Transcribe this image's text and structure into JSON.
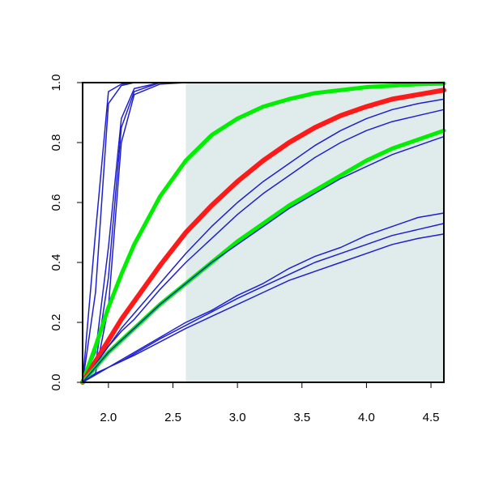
{
  "chart_data": {
    "type": "line",
    "title": "",
    "xlabel": "",
    "ylabel": "",
    "xlim": [
      1.8,
      4.6
    ],
    "ylim": [
      0.0,
      1.0
    ],
    "x_ticks": [
      "2.0",
      "2.5",
      "3.0",
      "3.5",
      "4.0",
      "4.5"
    ],
    "x_tick_values": [
      2.0,
      2.5,
      3.0,
      3.5,
      4.0,
      4.5
    ],
    "y_ticks": [
      "0.0",
      "0.2",
      "0.4",
      "0.6",
      "0.8",
      "1.0"
    ],
    "y_tick_values": [
      0.0,
      0.2,
      0.4,
      0.6,
      0.8,
      1.0
    ],
    "grid": false,
    "shaded_region": {
      "x_range": [
        2.6,
        4.6
      ],
      "color": "#e0ecec"
    },
    "x": [
      1.8,
      1.9,
      2.0,
      2.1,
      2.2,
      2.4,
      2.6,
      2.8,
      3.0,
      3.2,
      3.4,
      3.6,
      3.8,
      4.0,
      4.2,
      4.4,
      4.6
    ],
    "series": [
      {
        "color": "#1f1fcf",
        "width": 1.5,
        "values": [
          0.0,
          0.5,
          0.97,
          0.995,
          1.0,
          1.0,
          1.0,
          1.0,
          1.0,
          1.0,
          1.0,
          1.0,
          1.0,
          1.0,
          1.0,
          1.0,
          1.0
        ]
      },
      {
        "color": "#1f1fcf",
        "width": 1.5,
        "values": [
          0.0,
          0.3,
          0.93,
          0.99,
          1.0,
          1.0,
          1.0,
          1.0,
          1.0,
          1.0,
          1.0,
          1.0,
          1.0,
          1.0,
          1.0,
          1.0,
          1.0
        ]
      },
      {
        "color": "#1f1fcf",
        "width": 1.5,
        "values": [
          0.0,
          0.1,
          0.45,
          0.88,
          0.98,
          1.0,
          1.0,
          1.0,
          1.0,
          1.0,
          1.0,
          1.0,
          1.0,
          1.0,
          1.0,
          1.0,
          1.0
        ]
      },
      {
        "color": "#1f1fcf",
        "width": 1.5,
        "values": [
          0.0,
          0.06,
          0.35,
          0.85,
          0.97,
          1.0,
          1.0,
          1.0,
          1.0,
          1.0,
          1.0,
          1.0,
          1.0,
          1.0,
          1.0,
          1.0,
          1.0
        ]
      },
      {
        "color": "#1f1fcf",
        "width": 1.5,
        "values": [
          0.0,
          0.03,
          0.25,
          0.8,
          0.96,
          0.995,
          1.0,
          1.0,
          1.0,
          1.0,
          1.0,
          1.0,
          1.0,
          1.0,
          1.0,
          1.0,
          1.0
        ]
      },
      {
        "color": "#00ee00",
        "width": 5,
        "values": [
          0.0,
          0.12,
          0.25,
          0.36,
          0.46,
          0.62,
          0.74,
          0.825,
          0.88,
          0.92,
          0.945,
          0.965,
          0.975,
          0.985,
          0.99,
          0.995,
          0.997
        ]
      },
      {
        "color": "#ff1a1a",
        "width": 6,
        "values": [
          0.0,
          0.07,
          0.14,
          0.21,
          0.27,
          0.39,
          0.5,
          0.59,
          0.67,
          0.74,
          0.8,
          0.85,
          0.89,
          0.92,
          0.945,
          0.96,
          0.975
        ]
      },
      {
        "color": "#1f1fcf",
        "width": 1.5,
        "values": [
          0.0,
          0.06,
          0.12,
          0.18,
          0.23,
          0.33,
          0.43,
          0.52,
          0.6,
          0.67,
          0.73,
          0.79,
          0.84,
          0.88,
          0.91,
          0.93,
          0.945
        ]
      },
      {
        "color": "#1f1fcf",
        "width": 1.5,
        "values": [
          0.0,
          0.06,
          0.12,
          0.17,
          0.21,
          0.31,
          0.4,
          0.48,
          0.56,
          0.63,
          0.69,
          0.75,
          0.8,
          0.84,
          0.87,
          0.89,
          0.91
        ]
      },
      {
        "color": "#00ee00",
        "width": 5,
        "values": [
          0.0,
          0.05,
          0.1,
          0.14,
          0.18,
          0.26,
          0.33,
          0.4,
          0.47,
          0.53,
          0.59,
          0.64,
          0.69,
          0.74,
          0.78,
          0.81,
          0.84
        ]
      },
      {
        "color": "#1f1fcf",
        "width": 1.5,
        "values": [
          0.0,
          0.05,
          0.1,
          0.14,
          0.18,
          0.26,
          0.33,
          0.4,
          0.46,
          0.52,
          0.58,
          0.63,
          0.68,
          0.72,
          0.76,
          0.79,
          0.82
        ]
      },
      {
        "color": "#1f1fcf",
        "width": 1.5,
        "values": [
          0.0,
          0.03,
          0.05,
          0.075,
          0.1,
          0.15,
          0.2,
          0.24,
          0.29,
          0.33,
          0.38,
          0.42,
          0.45,
          0.49,
          0.52,
          0.55,
          0.565
        ]
      },
      {
        "color": "#1f1fcf",
        "width": 1.5,
        "values": [
          0.0,
          0.025,
          0.05,
          0.07,
          0.095,
          0.145,
          0.19,
          0.235,
          0.28,
          0.32,
          0.36,
          0.4,
          0.43,
          0.46,
          0.49,
          0.51,
          0.53
        ]
      },
      {
        "color": "#1f1fcf",
        "width": 1.5,
        "values": [
          0.0,
          0.025,
          0.05,
          0.07,
          0.09,
          0.135,
          0.18,
          0.22,
          0.26,
          0.3,
          0.34,
          0.37,
          0.4,
          0.43,
          0.46,
          0.48,
          0.495
        ]
      }
    ]
  }
}
